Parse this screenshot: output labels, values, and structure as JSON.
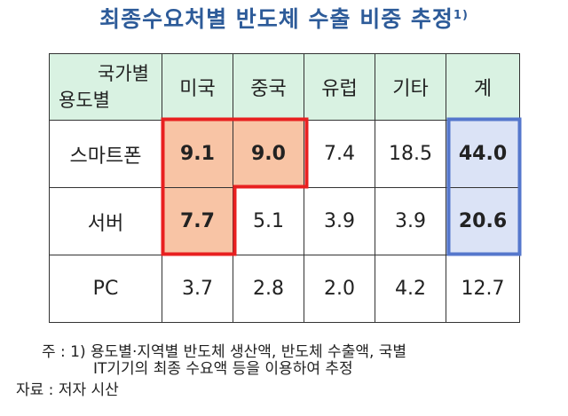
{
  "title": "최종수요처별 반도체 수출 비중 추정",
  "title_sup": "1)",
  "chart_data": {
    "type": "table",
    "title": "최종수요처별 반도체 수출 비중 추정",
    "header_corner_top": "국가별",
    "header_corner_bottom": "용도별",
    "columns": [
      "미국",
      "중국",
      "유럽",
      "기타",
      "계"
    ],
    "rows": [
      {
        "label": "스마트폰",
        "values": [
          "9.1",
          "9.0",
          "7.4",
          "18.5",
          "44.0"
        ]
      },
      {
        "label": "서버",
        "values": [
          "7.7",
          "5.1",
          "3.9",
          "3.9",
          "20.6"
        ]
      },
      {
        "label": "PC",
        "values": [
          "3.7",
          "2.8",
          "2.0",
          "4.2",
          "12.7"
        ]
      }
    ],
    "highlighted_cells": [
      [
        0,
        0
      ],
      [
        0,
        1
      ],
      [
        1,
        0
      ]
    ],
    "highlight_color": "#f8c4a5",
    "highlight_border_color": "#e82020",
    "total_cells": [
      [
        0,
        4
      ],
      [
        1,
        4
      ]
    ],
    "total_color": "#dbe3f6",
    "total_border_color": "#5577cc",
    "header_bg": "#d9f2e2"
  },
  "notes": {
    "line1": "주 : 1) 용도별·지역별 반도체 생산액, 반도체 수출액, 국별",
    "line2": "IT기기의 최종 수요액 등을 이용하여 추정",
    "source": "자료 : 저자 시산"
  }
}
